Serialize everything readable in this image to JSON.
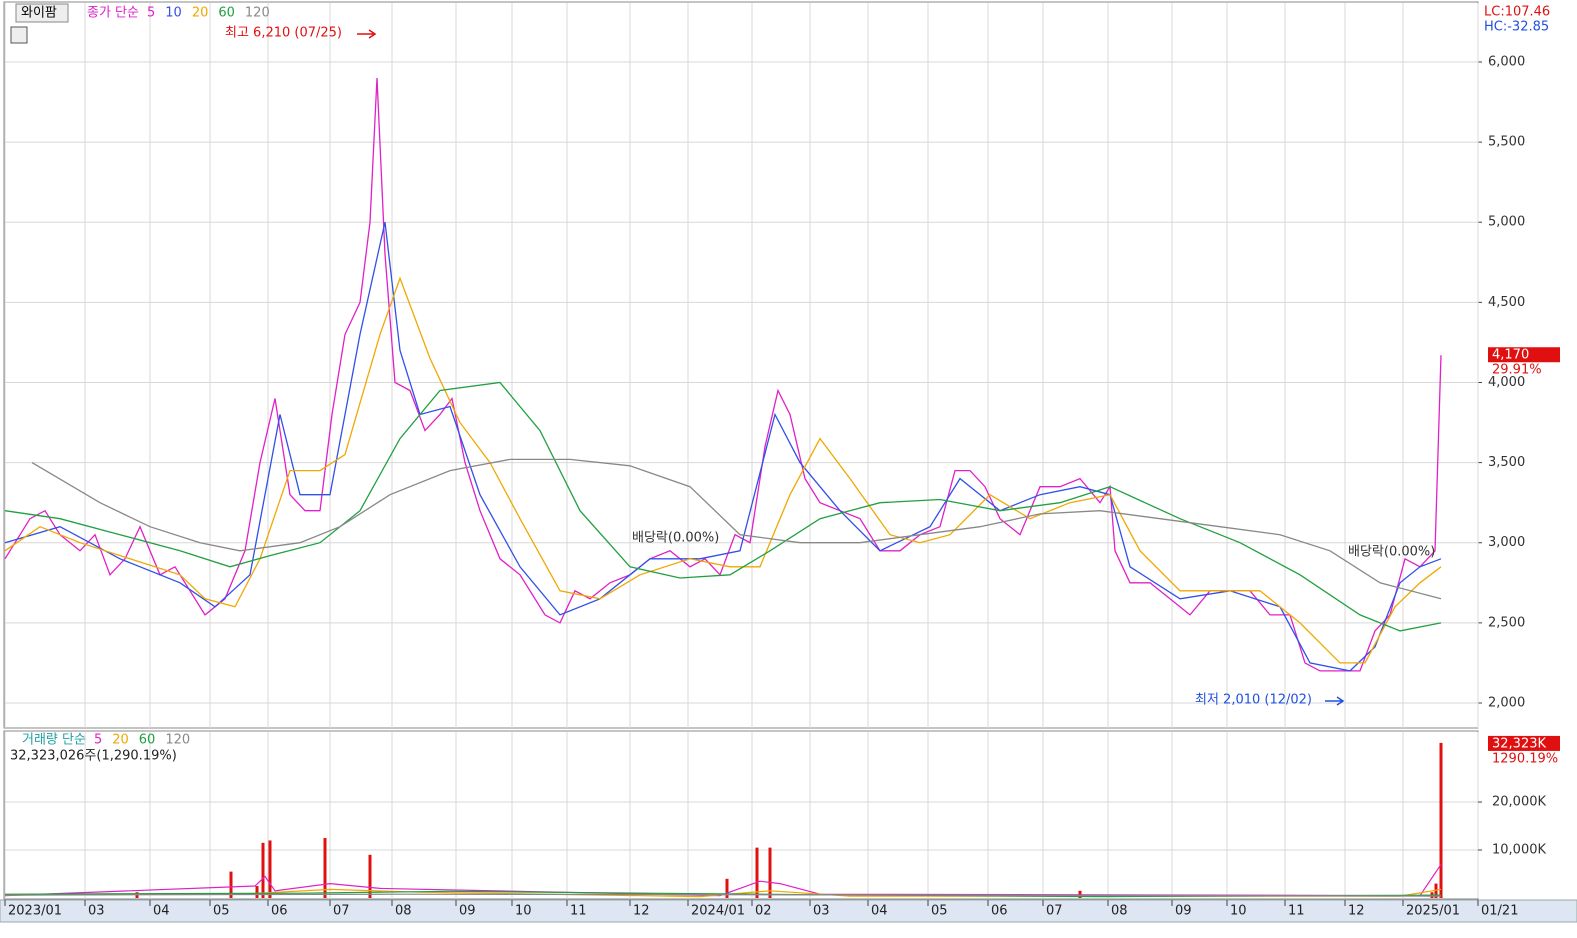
{
  "chart_data": [
    {
      "type": "line",
      "title": "와이팜",
      "legend_prefix": "종가 단순",
      "lc": "LC:107.46",
      "hc": "HC:-32.85",
      "last_value": 4170,
      "last_value_label": "4,170",
      "last_change": "29.91%",
      "annotations": [
        "최고 6,210 (07/25)",
        "최저 2,010 (12/02)",
        "배당락(0.00%)",
        "배당락(0.00%)"
      ],
      "xlim": [
        0,
        1473
      ],
      "ylim": [
        1844,
        6368
      ],
      "grid": true,
      "xticks": [
        {
          "value": 0,
          "label": "2023/01"
        },
        {
          "value": 80,
          "label": "03"
        },
        {
          "value": 145,
          "label": "04"
        },
        {
          "value": 205,
          "label": "05"
        },
        {
          "value": 263,
          "label": "06"
        },
        {
          "value": 325,
          "label": "07"
        },
        {
          "value": 387,
          "label": "08"
        },
        {
          "value": 451,
          "label": "09"
        },
        {
          "value": 507,
          "label": "10"
        },
        {
          "value": 562,
          "label": "11"
        },
        {
          "value": 625,
          "label": "12"
        },
        {
          "value": 683,
          "label": "2024/01"
        },
        {
          "value": 747,
          "label": "02"
        },
        {
          "value": 805,
          "label": "03"
        },
        {
          "value": 863,
          "label": "04"
        },
        {
          "value": 923,
          "label": "05"
        },
        {
          "value": 983,
          "label": "06"
        },
        {
          "value": 1038,
          "label": "07"
        },
        {
          "value": 1103,
          "label": "08"
        },
        {
          "value": 1167,
          "label": "09"
        },
        {
          "value": 1222,
          "label": "10"
        },
        {
          "value": 1280,
          "label": "11"
        },
        {
          "value": 1340,
          "label": "12"
        },
        {
          "value": 1398,
          "label": "2025/01"
        },
        {
          "value": 1473,
          "label": "01/21"
        }
      ],
      "yticks": [
        {
          "value": 2000,
          "label": "2,000"
        },
        {
          "value": 2500,
          "label": "2,500"
        },
        {
          "value": 3000,
          "label": "3,000"
        },
        {
          "value": 3500,
          "label": "3,500"
        },
        {
          "value": 4000,
          "label": "4,000"
        },
        {
          "value": 4500,
          "label": "4,500"
        },
        {
          "value": 5000,
          "label": "5,000"
        },
        {
          "value": 5500,
          "label": "5,500"
        },
        {
          "value": 6000,
          "label": "6,000"
        }
      ],
      "series": [
        {
          "name": "5",
          "color": "#e020c8",
          "x": [
            0,
            25,
            40,
            55,
            75,
            90,
            105,
            120,
            135,
            155,
            170,
            185,
            200,
            220,
            240,
            255,
            270,
            285,
            300,
            315,
            327,
            340,
            355,
            365,
            372,
            380,
            390,
            405,
            420,
            435,
            447,
            460,
            475,
            495,
            515,
            540,
            555,
            570,
            585,
            605,
            625,
            645,
            665,
            685,
            700,
            715,
            730,
            745,
            760,
            773,
            785,
            800,
            815,
            835,
            855,
            875,
            895,
            915,
            935,
            950,
            965,
            980,
            995,
            1015,
            1035,
            1055,
            1075,
            1095,
            1105,
            1110,
            1125,
            1145,
            1165,
            1185,
            1205,
            1225,
            1245,
            1265,
            1285,
            1300,
            1315,
            1335,
            1355,
            1370,
            1385,
            1400,
            1415,
            1430,
            1436
          ],
          "values": [
            2900,
            3150,
            3200,
            3050,
            2950,
            3050,
            2800,
            2900,
            3100,
            2800,
            2850,
            2700,
            2550,
            2650,
            2950,
            3500,
            3900,
            3300,
            3200,
            3200,
            3800,
            4300,
            4500,
            5000,
            5900,
            4800,
            4000,
            3950,
            3700,
            3800,
            3900,
            3500,
            3200,
            2900,
            2800,
            2550,
            2500,
            2700,
            2650,
            2750,
            2800,
            2900,
            2950,
            2850,
            2900,
            2800,
            3050,
            3000,
            3600,
            3950,
            3800,
            3400,
            3250,
            3200,
            3150,
            2950,
            2950,
            3050,
            3100,
            3450,
            3450,
            3350,
            3150,
            3050,
            3350,
            3350,
            3400,
            3250,
            3350,
            2950,
            2750,
            2750,
            2650,
            2550,
            2700,
            2700,
            2700,
            2550,
            2550,
            2250,
            2200,
            2200,
            2200,
            2450,
            2550,
            2900,
            2850,
            2950,
            4170
          ]
        },
        {
          "name": "10",
          "color": "#3050e8",
          "x": [
            0,
            55,
            115,
            175,
            210,
            245,
            275,
            295,
            325,
            355,
            380,
            395,
            415,
            445,
            475,
            515,
            555,
            595,
            645,
            695,
            735,
            770,
            795,
            835,
            875,
            925,
            955,
            995,
            1035,
            1075,
            1105,
            1125,
            1175,
            1225,
            1275,
            1305,
            1345,
            1370,
            1395,
            1415,
            1436
          ],
          "values": [
            3000,
            3100,
            2900,
            2750,
            2600,
            2800,
            3800,
            3300,
            3300,
            4300,
            5000,
            4200,
            3800,
            3850,
            3300,
            2850,
            2550,
            2650,
            2900,
            2900,
            2950,
            3800,
            3500,
            3200,
            2950,
            3100,
            3400,
            3200,
            3300,
            3350,
            3300,
            2850,
            2650,
            2700,
            2600,
            2250,
            2200,
            2350,
            2750,
            2850,
            2900
          ]
        },
        {
          "name": "20",
          "color": "#f0a800",
          "x": [
            0,
            35,
            75,
            125,
            175,
            200,
            230,
            255,
            285,
            315,
            340,
            375,
            395,
            425,
            455,
            485,
            515,
            555,
            595,
            635,
            685,
            725,
            755,
            785,
            815,
            845,
            885,
            915,
            945,
            985,
            1025,
            1065,
            1105,
            1135,
            1175,
            1215,
            1255,
            1295,
            1335,
            1360,
            1390,
            1415,
            1436
          ],
          "values": [
            2950,
            3100,
            3000,
            2900,
            2800,
            2650,
            2600,
            2900,
            3450,
            3450,
            3550,
            4300,
            4650,
            4150,
            3750,
            3500,
            3150,
            2700,
            2650,
            2800,
            2900,
            2850,
            2850,
            3300,
            3650,
            3400,
            3050,
            3000,
            3050,
            3300,
            3150,
            3250,
            3300,
            2950,
            2700,
            2700,
            2700,
            2500,
            2250,
            2250,
            2600,
            2750,
            2850
          ]
        },
        {
          "name": "60",
          "color": "#20a040",
          "x": [
            0,
            55,
            115,
            175,
            225,
            265,
            315,
            355,
            395,
            435,
            495,
            535,
            575,
            625,
            675,
            725,
            765,
            815,
            875,
            935,
            995,
            1055,
            1105,
            1175,
            1235,
            1295,
            1355,
            1395,
            1436
          ],
          "values": [
            3200,
            3150,
            3050,
            2950,
            2850,
            2920,
            3000,
            3200,
            3650,
            3950,
            4000,
            3700,
            3200,
            2850,
            2780,
            2800,
            2950,
            3150,
            3250,
            3270,
            3200,
            3250,
            3350,
            3150,
            3000,
            2800,
            2550,
            2450,
            2500
          ]
        },
        {
          "name": "120",
          "color": "#888888",
          "x": [
            27,
            95,
            145,
            195,
            235,
            295,
            335,
            385,
            445,
            505,
            565,
            625,
            685,
            735,
            795,
            855,
            915,
            975,
            1035,
            1095,
            1155,
            1215,
            1275,
            1325,
            1375,
            1436
          ],
          "values": [
            3500,
            3250,
            3100,
            3000,
            2950,
            3000,
            3100,
            3300,
            3450,
            3520,
            3520,
            3480,
            3350,
            3050,
            3000,
            3000,
            3050,
            3100,
            3180,
            3200,
            3150,
            3100,
            3050,
            2950,
            2750,
            2650
          ]
        }
      ]
    },
    {
      "type": "bar",
      "legend_prefix": "거래량 단순",
      "total_label": "32,323,026주(1,290.19%)",
      "last_value": 32323,
      "last_value_label": "32,323K",
      "last_change": "1290.19%",
      "xlim": [
        0,
        1473
      ],
      "ylim": [
        0,
        34600
      ],
      "grid": true,
      "yticks": [
        {
          "value": 10000,
          "label": "10,000K"
        },
        {
          "value": 20000,
          "label": "20,000K"
        }
      ],
      "bars": {
        "color": "#e01010",
        "x": [
          132,
          226,
          252,
          258,
          265,
          320,
          365,
          722,
          752,
          765,
          1075,
          1427,
          1431,
          1436
        ],
        "values": [
          1200,
          5500,
          2500,
          11500,
          12000,
          12500,
          9000,
          4000,
          10500,
          10500,
          1500,
          1200,
          3000,
          32323
        ]
      },
      "series": [
        {
          "name": "5",
          "color": "#e020c8",
          "x": [
            0,
            250,
            260,
            270,
            325,
            375,
            715,
            755,
            775,
            815,
            1415,
            1436
          ],
          "values": [
            500,
            2500,
            4500,
            1500,
            3000,
            2000,
            500,
            3500,
            3000,
            800,
            500,
            7000
          ]
        },
        {
          "name": "20",
          "color": "#f0a800",
          "x": [
            0,
            245,
            325,
            415,
            695,
            765,
            845,
            1395,
            1436
          ],
          "values": [
            600,
            900,
            1800,
            1200,
            300,
            1500,
            400,
            400,
            1800
          ]
        },
        {
          "name": "60",
          "color": "#20a040",
          "x": [
            0,
            295,
            445,
            795,
            1095,
            1436
          ],
          "values": [
            800,
            1000,
            1400,
            700,
            300,
            600
          ]
        },
        {
          "name": "120",
          "color": "#888888",
          "x": [
            0,
            395,
            695,
            1436
          ],
          "values": [
            600,
            800,
            700,
            400
          ]
        }
      ]
    }
  ]
}
